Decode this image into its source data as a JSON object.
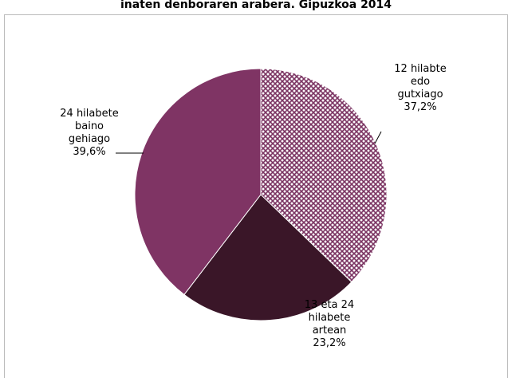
{
  "chart_data": {
    "type": "pie",
    "title": "inaten denboraren arabera. Gipuzkoa 2014",
    "categories": [
      [
        "12 hilabte",
        "edo",
        "gutxiago"
      ],
      [
        "13 eta 24",
        "hilabete",
        "artean"
      ],
      [
        "24 hilabete",
        "baino",
        "gehiago"
      ]
    ],
    "values": [
      37.2,
      23.2,
      39.6
    ],
    "value_labels": [
      "37,2%",
      "23,2%",
      "39,6%"
    ],
    "colors": [
      "#7b3462",
      "#3a1628",
      "#7f3464"
    ],
    "patterns": [
      "crosshatch",
      "solid",
      "solid"
    ]
  }
}
